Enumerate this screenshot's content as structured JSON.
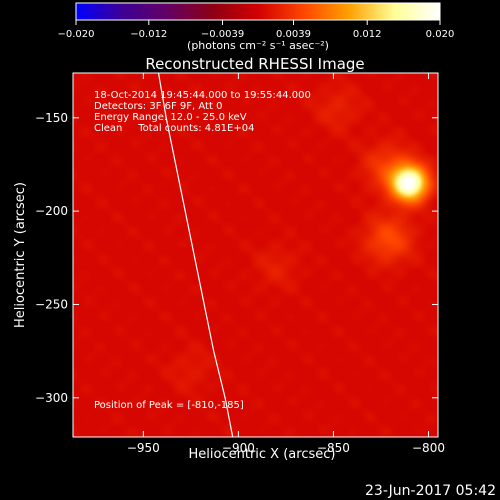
{
  "chart_data": {
    "type": "heatmap",
    "title": "Reconstructed RHESSI Image",
    "xlabel": "Heliocentric X (arcsec)",
    "ylabel": "Heliocentric Y (arcsec)",
    "xlim": [
      -987,
      -795
    ],
    "ylim": [
      -321,
      -126
    ],
    "xticks": [
      -950,
      -900,
      -850,
      -800
    ],
    "yticks": [
      -150,
      -200,
      -250,
      -300
    ],
    "xtick_labels": [
      "−950",
      "−900",
      "−850",
      "−800"
    ],
    "ytick_labels": [
      "−150",
      "−200",
      "−250",
      "−300"
    ],
    "colorbar": {
      "range": [
        -0.02,
        0.02
      ],
      "ticks": [
        -0.02,
        -0.012,
        -0.0039,
        0.0039,
        0.012,
        0.02
      ],
      "tick_labels": [
        "−0.020",
        "−0.012",
        "−0.0039",
        "0.0039",
        "0.012",
        "0.020"
      ],
      "label": "(photons cm⁻² s⁻¹ asec⁻²)",
      "colors": [
        "#0000ff",
        "#3c0096",
        "#640064",
        "#8c0014",
        "#d20000",
        "#ff4600",
        "#ffa000",
        "#ffff96",
        "#ffffff"
      ]
    },
    "info_lines": [
      "18-Oct-2014 19:45:44.000 to 19:55:44.000",
      "Detectors: 3F 6F 9F, Att 0",
      "Energy Range: 12.0 - 25.0 keV",
      "Clean     Total counts: 4.81E+04"
    ],
    "peak_label": "Position of Peak = [-810,-185]",
    "sources": [
      {
        "x": -810,
        "y": -185,
        "intensity": 0.02
      },
      {
        "x": -821,
        "y": -215,
        "intensity": 0.0045
      },
      {
        "x": -822,
        "y": -176,
        "intensity": 0.0035
      },
      {
        "x": -848,
        "y": -145,
        "intensity": 0.0018
      },
      {
        "x": -880,
        "y": -230,
        "intensity": 0.0015
      },
      {
        "x": -925,
        "y": -285,
        "intensity": 0.0012
      }
    ],
    "background_level": 0.0009,
    "limb_curve": [
      {
        "x": -942,
        "y": -126
      },
      {
        "x": -938,
        "y": -150
      },
      {
        "x": -933,
        "y": -175
      },
      {
        "x": -928,
        "y": -200
      },
      {
        "x": -923,
        "y": -225
      },
      {
        "x": -918,
        "y": -250
      },
      {
        "x": -913,
        "y": -275
      },
      {
        "x": -907,
        "y": -300
      },
      {
        "x": -903,
        "y": -321
      }
    ],
    "colors": {
      "limb": "#ffffff",
      "axes": "#ffffff",
      "background": "#000000"
    }
  },
  "footer": {
    "timestamp": "23-Jun-2017 05:42"
  }
}
